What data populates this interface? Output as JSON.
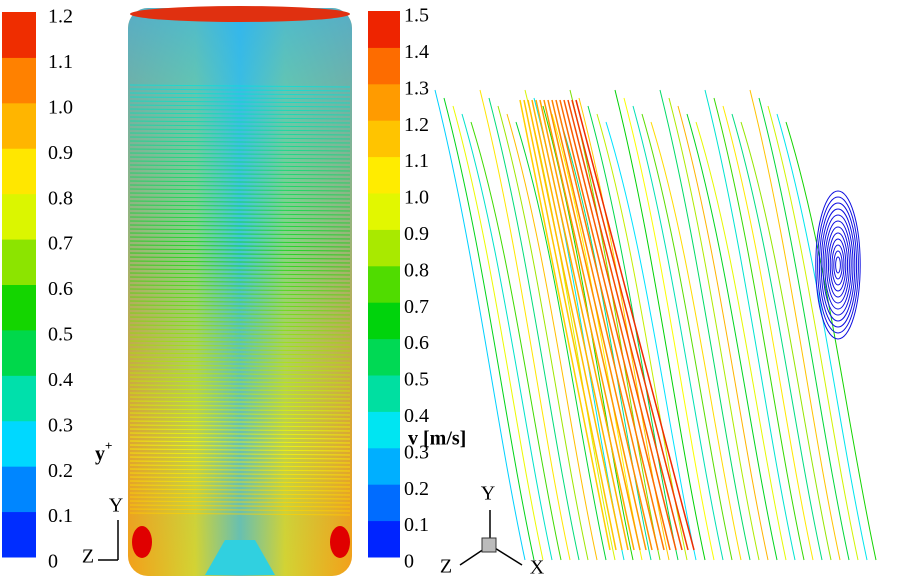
{
  "legend_left": {
    "title": "y",
    "title_sup": "+",
    "labels": [
      "0",
      "0.1",
      "0.2",
      "0.3",
      "0.4",
      "0.5",
      "0.6",
      "0.7",
      "0.8",
      "0.9",
      "1.0",
      "1.1",
      "1.2"
    ]
  },
  "legend_right": {
    "title": "v [m/s]",
    "labels": [
      "0",
      "0.1",
      "0.2",
      "0.3",
      "0.4",
      "0.5",
      "0.6",
      "0.7",
      "0.8",
      "0.9",
      "1.0",
      "1.1",
      "1.2",
      "1.3",
      "1.4",
      "1.5"
    ]
  },
  "triad_left": {
    "y": "Y",
    "z": "Z"
  },
  "triad_right": {
    "y": "Y",
    "z": "Z",
    "x": "X"
  }
}
